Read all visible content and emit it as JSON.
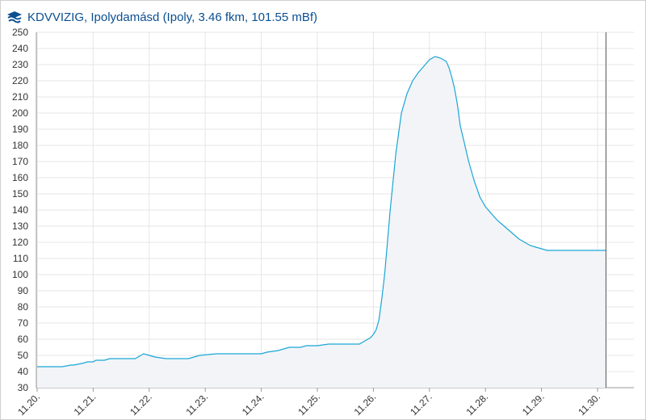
{
  "header": {
    "title": "KDVVIZIG, Ipolydamásd (Ipoly, 3.46 fkm, 101.55 mBf)"
  },
  "colors": {
    "line": "#1aa6d6",
    "fill": "#f2f4f7",
    "grid": "#e6e6e6",
    "axis": "#9a9a9a",
    "cursor": "#555555",
    "logo": "#0b4f91"
  },
  "chart_data": {
    "type": "area",
    "xlabel": "",
    "ylabel": "",
    "ylim": [
      30,
      250
    ],
    "yticks": [
      30,
      40,
      50,
      60,
      70,
      80,
      90,
      100,
      110,
      120,
      130,
      140,
      150,
      160,
      170,
      180,
      190,
      200,
      210,
      220,
      230,
      240,
      250
    ],
    "xlim": [
      0,
      10.3
    ],
    "xticks": [
      {
        "x": 0,
        "label": "11.20."
      },
      {
        "x": 1,
        "label": "11.21."
      },
      {
        "x": 2,
        "label": "11.22."
      },
      {
        "x": 3,
        "label": "11.23."
      },
      {
        "x": 4,
        "label": "11.24."
      },
      {
        "x": 5,
        "label": "11.25."
      },
      {
        "x": 6,
        "label": "11.26."
      },
      {
        "x": 7,
        "label": "11.27."
      },
      {
        "x": 8,
        "label": "11.28."
      },
      {
        "x": 9,
        "label": "11.29."
      },
      {
        "x": 10,
        "label": "11.30."
      }
    ],
    "cursor_x": 10.15,
    "grid": true,
    "legend": "none",
    "series": [
      {
        "x": [
          0.0,
          0.4,
          0.45,
          0.6,
          0.65,
          0.8,
          0.9,
          1.0,
          1.05,
          1.2,
          1.3,
          1.5,
          1.6,
          1.75,
          1.8,
          1.85,
          1.9,
          2.0,
          2.1,
          2.3,
          2.6,
          2.7,
          2.8,
          2.9,
          3.2,
          3.5,
          3.7,
          3.8,
          3.9,
          4.0,
          4.1,
          4.3,
          4.4,
          4.5,
          4.7,
          4.8,
          5.0,
          5.2,
          5.4,
          5.5,
          5.55,
          5.6,
          5.7,
          5.75,
          5.8,
          5.85,
          5.9,
          5.95,
          6.0,
          6.05,
          6.1,
          6.15,
          6.2,
          6.25,
          6.3,
          6.4,
          6.5,
          6.6,
          6.7,
          6.8,
          6.9,
          7.0,
          7.1,
          7.2,
          7.3,
          7.35,
          7.4,
          7.45,
          7.5,
          7.55,
          7.6,
          7.7,
          7.8,
          7.9,
          8.0,
          8.1,
          8.2,
          8.3,
          8.4,
          8.5,
          8.6,
          8.7,
          8.8,
          8.9,
          9.0,
          9.1,
          9.2,
          9.3,
          9.4,
          9.5,
          9.6,
          9.7,
          9.8,
          9.9,
          10.0,
          10.05,
          10.1,
          10.15
        ],
        "y": [
          43,
          43,
          43,
          44,
          44,
          45,
          46,
          46,
          47,
          47,
          48,
          48,
          48,
          48,
          49,
          50,
          51,
          50,
          49,
          48,
          48,
          48,
          49,
          50,
          51,
          51,
          51,
          51,
          51,
          51,
          52,
          53,
          54,
          55,
          55,
          56,
          56,
          57,
          57,
          57,
          57,
          57,
          57,
          57,
          58,
          59,
          60,
          61,
          63,
          66,
          72,
          85,
          100,
          120,
          140,
          175,
          200,
          212,
          220,
          225,
          229,
          233,
          235,
          234,
          232,
          228,
          222,
          215,
          205,
          192,
          185,
          170,
          158,
          148,
          142,
          138,
          134,
          131,
          128,
          125,
          122,
          120,
          118,
          117,
          116,
          115,
          115,
          115,
          115,
          115,
          115,
          115,
          115,
          115,
          115,
          115,
          115,
          115
        ]
      }
    ]
  }
}
